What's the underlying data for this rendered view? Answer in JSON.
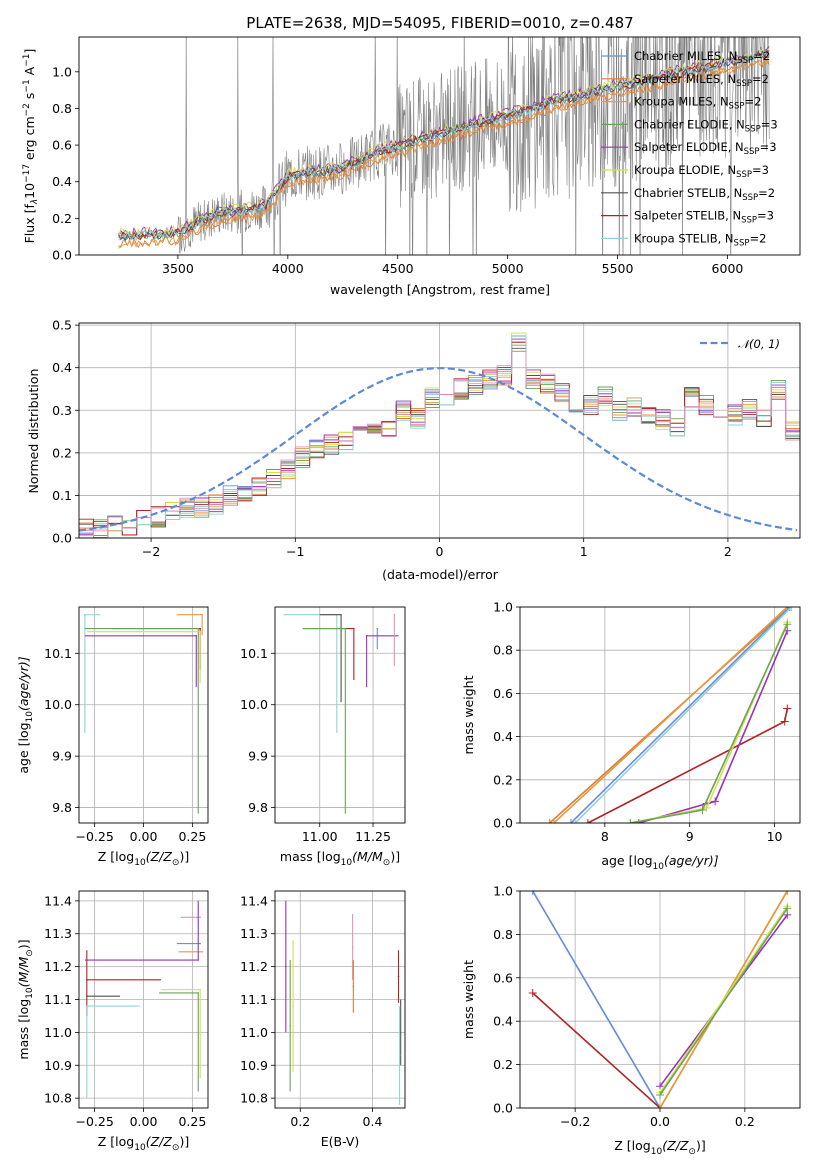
{
  "figure": {
    "title": "PLATE=2638, MJD=54095, FIBERID=0010, z=0.487"
  },
  "chart_data": [
    {
      "id": "spectrum",
      "type": "line",
      "xlabel": "wavelength [Angstrom, rest frame]",
      "ylabel": "Flux [f",
      "ylabel_parts": {
        "main": "Flux [f",
        "sub1": "λ",
        "p1": "10",
        "sup1": "−17",
        "p2": " erg cm",
        "sup2": "−2",
        "p3": " s",
        "sup3": "−1",
        "p4": " A",
        "sup4": "−1",
        "p5": "]"
      },
      "xlim": [
        3050,
        6330
      ],
      "ylim": [
        0,
        1.19
      ],
      "xticks": [
        "3500",
        "4000",
        "4500",
        "5000",
        "5500",
        "6000"
      ],
      "xtick_values": [
        3500,
        4000,
        4500,
        5000,
        5500,
        6000
      ],
      "yticks": [
        "0.0",
        "0.2",
        "0.4",
        "0.6",
        "0.8",
        "1.0"
      ],
      "ytick_values": [
        0,
        0.2,
        0.4,
        0.6,
        0.8,
        1.0
      ],
      "legend": [
        {
          "name": "Chabrier MILES, N",
          "sub": "SSP",
          "tail": "=2",
          "color": "#6a8fd6"
        },
        {
          "name": "Salpeter MILES, N",
          "sub": "SSP",
          "tail": "=2",
          "color": "#e07a3a"
        },
        {
          "name": "Kroupa MILES, N",
          "sub": "SSP",
          "tail": "=2",
          "color": "#e69a3c"
        },
        {
          "name": "Chabrier ELODIE, N",
          "sub": "SSP",
          "tail": "=3",
          "color": "#6aa35a"
        },
        {
          "name": "Salpeter ELODIE, N",
          "sub": "SSP",
          "tail": "=3",
          "color": "#9b30b8"
        },
        {
          "name": "Kroupa ELODIE, N",
          "sub": "SSP",
          "tail": "=3",
          "color": "#d4e04a"
        },
        {
          "name": "Chabrier STELIB, N",
          "sub": "SSP",
          "tail": "=2",
          "color": "#505050"
        },
        {
          "name": "Salpeter STELIB, N",
          "sub": "SSP",
          "tail": "=3",
          "color": "#b22222"
        },
        {
          "name": "Kroupa STELIB, N",
          "sub": "SSP",
          "tail": "=2",
          "color": "#8fd3d9"
        }
      ],
      "observed_color": "#808080",
      "model_anchor_x": [
        3230,
        3400,
        3500,
        3600,
        3700,
        3800,
        3900,
        4000,
        4100,
        4200,
        4300,
        4400,
        4500,
        4600,
        4700,
        4800,
        4900,
        5000,
        5100,
        5200,
        5300,
        5400,
        5500,
        5600,
        5700,
        5800,
        5900,
        6000,
        6100,
        6200
      ],
      "model_anchor_y": [
        0.1,
        0.11,
        0.12,
        0.18,
        0.23,
        0.24,
        0.27,
        0.43,
        0.45,
        0.46,
        0.5,
        0.56,
        0.59,
        0.63,
        0.66,
        0.7,
        0.73,
        0.76,
        0.79,
        0.84,
        0.86,
        0.89,
        0.92,
        0.94,
        0.97,
        1.0,
        1.02,
        1.05,
        1.08,
        1.1
      ]
    },
    {
      "id": "residuals",
      "type": "area",
      "xlabel": "(data-model)/error",
      "ylabel": "Normed distribution",
      "xlim": [
        -2.5,
        2.5
      ],
      "ylim": [
        0,
        0.505
      ],
      "xticks": [
        "−2",
        "−1",
        "0",
        "1",
        "2"
      ],
      "xtick_values": [
        -2,
        -1,
        0,
        1,
        2
      ],
      "yticks": [
        "0.0",
        "0.1",
        "0.2",
        "0.3",
        "0.4",
        "0.5"
      ],
      "ytick_values": [
        0,
        0.1,
        0.2,
        0.3,
        0.4,
        0.5
      ],
      "grid": true,
      "legend_text": "𝒩(0, 1)",
      "normal_color": "#5b8bd6",
      "hist_colors": [
        "#6a8fd6",
        "#e07a3a",
        "#e69a3c",
        "#6aa35a",
        "#9b30b8",
        "#d4e04a",
        "#505050",
        "#b22222",
        "#8fd3d9",
        "#e090c0"
      ],
      "bin_edges_start": -2.5,
      "bin_width": 0.1,
      "hist_base": [
        0.02,
        0.02,
        0.03,
        0.03,
        0.04,
        0.05,
        0.06,
        0.07,
        0.07,
        0.08,
        0.1,
        0.11,
        0.12,
        0.14,
        0.16,
        0.19,
        0.21,
        0.22,
        0.23,
        0.27,
        0.26,
        0.25,
        0.3,
        0.28,
        0.33,
        0.32,
        0.35,
        0.36,
        0.37,
        0.38,
        0.46,
        0.37,
        0.36,
        0.34,
        0.32,
        0.31,
        0.33,
        0.3,
        0.31,
        0.29,
        0.28,
        0.26,
        0.33,
        0.31,
        0.3,
        0.29,
        0.3,
        0.28,
        0.35,
        0.25,
        0.24,
        0.23,
        0.22,
        0.2,
        0.21,
        0.19,
        0.17,
        0.18,
        0.17,
        0.16,
        0.18,
        0.17,
        0.16,
        0.15,
        0.14,
        0.12,
        0.11,
        0.1,
        0.09,
        0.08,
        0.06,
        0.05,
        0.05,
        0.06,
        0.04
      ]
    },
    {
      "id": "age_vs_Z",
      "type": "scatter",
      "xlabel": "Z [log",
      "xlabel_parts": {
        "main": "Z [log",
        "sub": "10",
        "rest": "(Z/Z",
        "sub2": "⊙",
        "end": ")]"
      },
      "ylabel_parts": {
        "main": "age  [log",
        "sub": "10",
        "rest": "(age/yr)]"
      },
      "xlim": [
        -0.33,
        0.33
      ],
      "ylim": [
        9.77,
        10.19
      ],
      "xticks": [
        "−0.25",
        "0.00",
        "0.25"
      ],
      "xtick_values": [
        -0.25,
        0,
        0.25
      ],
      "yticks": [
        "9.8",
        "9.9",
        "10.0",
        "10.1"
      ],
      "ytick_values": [
        9.8,
        9.9,
        10.0,
        10.1
      ],
      "points": [
        {
          "x": -0.3,
          "y": 10.175,
          "xerr": [
            0.0,
            0.08
          ],
          "yerr": [
            0.23,
            0.0
          ],
          "c": "#8fd3d9"
        },
        {
          "x": 0.3,
          "y": 10.175,
          "xerr": [
            0.13,
            0.0
          ],
          "yerr": [
            0.04,
            0.0
          ],
          "c": "#e69a3c"
        },
        {
          "x": 0.29,
          "y": 10.148,
          "xerr": [
            0.45,
            0.0
          ],
          "yerr": [
            0.08,
            0.0
          ],
          "c": "#b22222"
        },
        {
          "x": 0.28,
          "y": 10.148,
          "xerr": [
            0.58,
            0.0
          ],
          "yerr": [
            0.36,
            0.0
          ],
          "c": "#6aa35a"
        },
        {
          "x": 0.29,
          "y": 10.142,
          "xerr": [
            0.58,
            0.0
          ],
          "yerr": [
            0.1,
            0.0
          ],
          "c": "#d4e04a"
        },
        {
          "x": 0.27,
          "y": 10.134,
          "xerr": [
            0.57,
            0.0
          ],
          "yerr": [
            0.1,
            0.0
          ],
          "c": "#9b30b8"
        }
      ]
    },
    {
      "id": "age_vs_mass",
      "type": "scatter",
      "xlabel_parts": {
        "main": "mass [log",
        "sub": "10",
        "rest": "(M/M",
        "sub2": "⊙",
        "end": ")]"
      },
      "xlim": [
        10.79,
        11.4
      ],
      "ylim": [
        9.77,
        10.19
      ],
      "xticks": [
        "11.00",
        "11.25"
      ],
      "xtick_values": [
        11.0,
        11.25
      ],
      "yticks": [
        "9.8",
        "9.9",
        "10.0",
        "10.1"
      ],
      "ytick_values": [
        9.8,
        9.9,
        10.0,
        10.1
      ],
      "points": [
        {
          "x": 11.08,
          "y": 10.175,
          "xerr": [
            0.25,
            0.0
          ],
          "yerr": [
            0.23,
            0.0
          ],
          "c": "#8fd3d9"
        },
        {
          "x": 11.1,
          "y": 10.175,
          "xerr": [
            0.1,
            0.0
          ],
          "yerr": [
            0.17,
            0.0
          ],
          "c": "#505050"
        },
        {
          "x": 11.27,
          "y": 10.148,
          "xerr": [
            0.0,
            0.0
          ],
          "yerr": [
            0.04,
            0.0
          ],
          "c": "#6a8fd6"
        },
        {
          "x": 11.16,
          "y": 10.148,
          "xerr": [
            0.24,
            0.0
          ],
          "yerr": [
            0.1,
            0.0
          ],
          "c": "#b22222"
        },
        {
          "x": 11.12,
          "y": 10.148,
          "xerr": [
            0.2,
            0.0
          ],
          "yerr": [
            0.36,
            0.0
          ],
          "c": "#6aa35a"
        },
        {
          "x": 11.22,
          "y": 10.134,
          "xerr": [
            0.0,
            0.15
          ],
          "yerr": [
            0.1,
            0.0
          ],
          "c": "#9b30b8"
        },
        {
          "x": 11.35,
          "y": 10.175,
          "xerr": [
            0.0,
            0.0
          ],
          "yerr": [
            0.1,
            0.0
          ],
          "c": "#e090c0"
        }
      ]
    },
    {
      "id": "mass_weight_vs_age",
      "type": "line",
      "xlabel_parts": {
        "main": "age  [log",
        "sub": "10",
        "rest": "(age/yr)]"
      },
      "ylabel": "mass weight",
      "xlim": [
        7.0,
        10.3
      ],
      "ylim": [
        0,
        1.0
      ],
      "xticks": [
        "8",
        "9",
        "10"
      ],
      "xtick_values": [
        8,
        9,
        10
      ],
      "yticks": [
        "0.0",
        "0.2",
        "0.4",
        "0.6",
        "0.8",
        "1.0"
      ],
      "ytick_values": [
        0,
        0.2,
        0.4,
        0.6,
        0.8,
        1.0
      ],
      "series": [
        {
          "c": "#e07a3a",
          "x": [
            7.35,
            10.18
          ],
          "y": [
            0.0,
            1.0
          ]
        },
        {
          "c": "#e69a3c",
          "x": [
            7.4,
            10.15
          ],
          "y": [
            0.0,
            1.0
          ]
        },
        {
          "c": "#6a8fd6",
          "x": [
            7.6,
            10.18
          ],
          "y": [
            0.0,
            1.0
          ]
        },
        {
          "c": "#8fd3d9",
          "x": [
            7.65,
            10.2
          ],
          "y": [
            0.0,
            1.0
          ]
        },
        {
          "c": "#b22222",
          "x": [
            7.8,
            10.12,
            10.15
          ],
          "y": [
            0.0,
            0.47,
            0.53
          ]
        },
        {
          "c": "#9b30b8",
          "x": [
            8.4,
            9.2,
            9.3,
            10.15
          ],
          "y": [
            0.0,
            0.09,
            0.1,
            0.89
          ]
        },
        {
          "c": "#d4e04a",
          "x": [
            8.3,
            9.2,
            10.15
          ],
          "y": [
            0.0,
            0.07,
            0.93
          ]
        },
        {
          "c": "#6aa35a",
          "x": [
            8.3,
            9.15,
            10.15
          ],
          "y": [
            0.0,
            0.06,
            0.92
          ]
        }
      ]
    },
    {
      "id": "mass_vs_Z",
      "type": "scatter",
      "xlabel_parts": {
        "main": "Z [log",
        "sub": "10",
        "rest": "(Z/Z",
        "sub2": "⊙",
        "end": ")]"
      },
      "ylabel_parts": {
        "main": "mass [log",
        "sub": "10",
        "rest": "(M/M",
        "sub2": "⊙",
        "end": ")]"
      },
      "xlim": [
        -0.33,
        0.33
      ],
      "ylim": [
        10.77,
        11.43
      ],
      "xticks": [
        "−0.25",
        "0.00",
        "0.25"
      ],
      "xtick_values": [
        -0.25,
        0,
        0.25
      ],
      "yticks": [
        "10.8",
        "10.9",
        "11.0",
        "11.1",
        "11.2",
        "11.3",
        "11.4"
      ],
      "ytick_values": [
        10.8,
        10.9,
        11.0,
        11.1,
        11.2,
        11.3,
        11.4
      ],
      "points": [
        {
          "x": 0.29,
          "y": 11.35,
          "xerr": [
            0.1,
            0.0
          ],
          "yerr": [
            0.0,
            0.0
          ],
          "c": "#e090c0"
        },
        {
          "x": 0.29,
          "y": 11.27,
          "xerr": [
            0.12,
            0.0
          ],
          "yerr": [
            0.0,
            0.0
          ],
          "c": "#6a8fd6"
        },
        {
          "x": 0.3,
          "y": 11.245,
          "xerr": [
            0.12,
            0.0
          ],
          "yerr": [
            0.0,
            0.0
          ],
          "c": "#e69a3c"
        },
        {
          "x": 0.28,
          "y": 11.22,
          "xerr": [
            0.58,
            0.0
          ],
          "yerr": [
            0.0,
            0.18
          ],
          "c": "#9b30b8"
        },
        {
          "x": -0.29,
          "y": 11.16,
          "xerr": [
            0.0,
            0.38
          ],
          "yerr": [
            0.11,
            0.09
          ],
          "c": "#b22222"
        },
        {
          "x": 0.29,
          "y": 11.13,
          "xerr": [
            0.2,
            0.0
          ],
          "yerr": [
            0.27,
            0.0
          ],
          "c": "#d4e04a"
        },
        {
          "x": 0.28,
          "y": 11.12,
          "xerr": [
            0.2,
            0.0
          ],
          "yerr": [
            0.3,
            0.0
          ],
          "c": "#6aa35a"
        },
        {
          "x": -0.29,
          "y": 11.11,
          "xerr": [
            0.0,
            0.17
          ],
          "yerr": [
            0.0,
            0.0
          ],
          "c": "#505050"
        },
        {
          "x": -0.29,
          "y": 11.08,
          "xerr": [
            0.0,
            0.27
          ],
          "yerr": [
            0.28,
            0.0
          ],
          "c": "#8fd3d9"
        }
      ]
    },
    {
      "id": "mass_vs_EBV",
      "type": "scatter",
      "xlabel": "E(B-V)",
      "xlim": [
        0.13,
        0.49
      ],
      "ylim": [
        10.77,
        11.43
      ],
      "xticks": [
        "0.2",
        "0.4"
      ],
      "xtick_values": [
        0.2,
        0.4
      ],
      "yticks": [
        "10.8",
        "10.9",
        "11.0",
        "11.1",
        "11.2",
        "11.3",
        "11.4"
      ],
      "ytick_values": [
        10.8,
        10.9,
        11.0,
        11.1,
        11.2,
        11.3,
        11.4
      ],
      "points": [
        {
          "x": 0.16,
          "y": 11.2,
          "xerr": [
            0,
            0
          ],
          "yerr": [
            0.2,
            0.2
          ],
          "c": "#9b30b8"
        },
        {
          "x": 0.172,
          "y": 11.02,
          "xerr": [
            0,
            0
          ],
          "yerr": [
            0.2,
            0.2
          ],
          "c": "#6aa35a"
        },
        {
          "x": 0.18,
          "y": 11.08,
          "xerr": [
            0,
            0
          ],
          "yerr": [
            0.2,
            0.2
          ],
          "c": "#d4e04a"
        },
        {
          "x": 0.345,
          "y": 11.26,
          "xerr": [
            0,
            0
          ],
          "yerr": [
            0.1,
            0.1
          ],
          "c": "#e090c0"
        },
        {
          "x": 0.347,
          "y": 11.14,
          "xerr": [
            0,
            0
          ],
          "yerr": [
            0.08,
            0.08
          ],
          "c": "#e07a3a"
        },
        {
          "x": 0.472,
          "y": 11.17,
          "xerr": [
            0,
            0
          ],
          "yerr": [
            0.08,
            0.08
          ],
          "c": "#b22222"
        },
        {
          "x": 0.478,
          "y": 11.0,
          "xerr": [
            0,
            0
          ],
          "yerr": [
            0.1,
            0.1
          ],
          "c": "#505050"
        },
        {
          "x": 0.475,
          "y": 10.93,
          "xerr": [
            0,
            0
          ],
          "yerr": [
            0.15,
            0.15
          ],
          "c": "#8fd3d9"
        }
      ]
    },
    {
      "id": "mass_weight_vs_Z",
      "type": "line",
      "xlabel_parts": {
        "main": "Z [log",
        "sub": "10",
        "rest": "(Z/Z",
        "sub2": "⊙",
        "end": ")]"
      },
      "ylabel": "mass weight",
      "xlim": [
        -0.33,
        0.33
      ],
      "ylim": [
        0,
        1.0
      ],
      "xticks": [
        "−0.2",
        "0.0",
        "0.2"
      ],
      "xtick_values": [
        -0.2,
        0,
        0.2
      ],
      "yticks": [
        "0.0",
        "0.2",
        "0.4",
        "0.6",
        "0.8",
        "1.0"
      ],
      "ytick_values": [
        0,
        0.2,
        0.4,
        0.6,
        0.8,
        1.0
      ],
      "series": [
        {
          "c": "#8fd3d9",
          "x": [
            -0.3,
            0.0
          ],
          "y": [
            1.0,
            0.0
          ]
        },
        {
          "c": "#6a8fd6",
          "x": [
            -0.3,
            0.0
          ],
          "y": [
            1.0,
            0.0
          ]
        },
        {
          "c": "#b22222",
          "x": [
            -0.3,
            0.0
          ],
          "y": [
            0.53,
            0.0
          ]
        },
        {
          "c": "#e07a3a",
          "x": [
            0.0,
            0.3
          ],
          "y": [
            0.0,
            1.0
          ]
        },
        {
          "c": "#e69a3c",
          "x": [
            0.0,
            0.3
          ],
          "y": [
            0.0,
            1.0
          ]
        },
        {
          "c": "#9b30b8",
          "x": [
            0.0,
            0.3
          ],
          "y": [
            0.1,
            0.89
          ]
        },
        {
          "c": "#d4e04a",
          "x": [
            0.0,
            0.3
          ],
          "y": [
            0.07,
            0.93
          ]
        },
        {
          "c": "#6aa35a",
          "x": [
            0.0,
            0.3
          ],
          "y": [
            0.06,
            0.92
          ]
        }
      ]
    }
  ]
}
